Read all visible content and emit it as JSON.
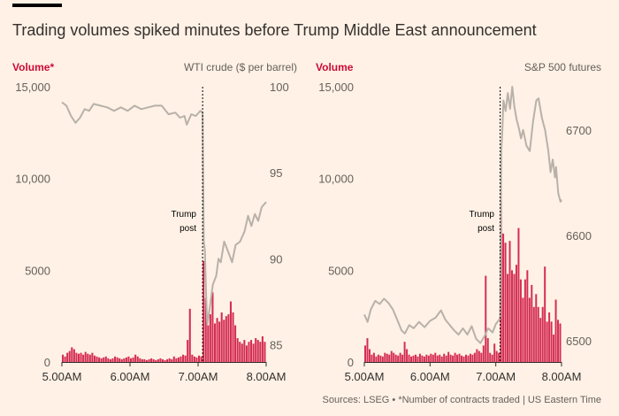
{
  "title": "Trading volumes spiked minutes before Trump Middle East announcement",
  "footer": "Sources: LSEG • *Number of contracts traded | US Eastern Time",
  "colors": {
    "volume": "#cc0a3a",
    "price": "#b8b1aa",
    "background": "#fff1e5",
    "text": "#33302e"
  },
  "chart_data": [
    {
      "type": "bar+line",
      "left_label": "Volume*",
      "right_label": "WTI crude ($ per barrel)",
      "volume_ylim": [
        0,
        15000
      ],
      "volume_ticks": [
        "0",
        "5000",
        "10,000",
        "15,000"
      ],
      "volume_tick_values": [
        0,
        5000,
        10000,
        15000
      ],
      "price_ticks": [
        "85",
        "90",
        "95",
        "100"
      ],
      "price_tick_values": [
        85,
        90,
        95,
        100
      ],
      "price_ylim": [
        84,
        100
      ],
      "x_ticks": [
        "5.00AM",
        "6.00AM",
        "7.00AM",
        "8.00AM"
      ],
      "x_tick_values": [
        "05:00",
        "06:00",
        "07:00",
        "08:00"
      ],
      "xlim": [
        "05:00",
        "08:00"
      ],
      "annotation": {
        "line1": "Trump",
        "line2": "post",
        "time": "07:04"
      },
      "volume_times": [
        "05:00",
        "05:02",
        "05:04",
        "05:06",
        "05:08",
        "05:10",
        "05:12",
        "05:14",
        "05:16",
        "05:18",
        "05:20",
        "05:22",
        "05:24",
        "05:26",
        "05:28",
        "05:30",
        "05:32",
        "05:34",
        "05:36",
        "05:38",
        "05:40",
        "05:42",
        "05:44",
        "05:46",
        "05:48",
        "05:50",
        "05:52",
        "05:54",
        "05:56",
        "05:58",
        "06:00",
        "06:02",
        "06:04",
        "06:06",
        "06:08",
        "06:10",
        "06:12",
        "06:14",
        "06:16",
        "06:18",
        "06:20",
        "06:22",
        "06:24",
        "06:26",
        "06:28",
        "06:30",
        "06:32",
        "06:34",
        "06:36",
        "06:38",
        "06:40",
        "06:42",
        "06:44",
        "06:46",
        "06:48",
        "06:50",
        "06:52",
        "06:54",
        "06:56",
        "06:58",
        "07:00",
        "07:02",
        "07:04",
        "07:06",
        "07:08",
        "07:10",
        "07:12",
        "07:14",
        "07:16",
        "07:18",
        "07:20",
        "07:22",
        "07:24",
        "07:26",
        "07:28",
        "07:30",
        "07:32",
        "07:34",
        "07:36",
        "07:38",
        "07:40",
        "07:42",
        "07:44",
        "07:46",
        "07:48",
        "07:50",
        "07:52",
        "07:54",
        "07:56",
        "07:58"
      ],
      "volume": [
        400,
        300,
        500,
        600,
        800,
        700,
        500,
        450,
        500,
        400,
        550,
        450,
        400,
        500,
        350,
        300,
        250,
        200,
        250,
        300,
        200,
        150,
        200,
        300,
        250,
        200,
        150,
        200,
        250,
        300,
        200,
        250,
        400,
        300,
        200,
        150,
        150,
        100,
        150,
        200,
        150,
        100,
        150,
        200,
        150,
        100,
        150,
        200,
        150,
        300,
        200,
        250,
        300,
        400,
        350,
        1200,
        2900,
        400,
        300,
        250,
        350,
        300,
        5500,
        3500,
        2000,
        2600,
        3800,
        2100,
        2400,
        2200,
        2700,
        2300,
        2500,
        2600,
        3300,
        2700,
        2000,
        1300,
        1100,
        1000,
        1200,
        900,
        1100,
        1200,
        1000,
        1300,
        1200,
        1100,
        1400,
        1100
      ],
      "price": [
        [
          "05:00",
          99.1
        ],
        [
          "05:04",
          98.9
        ],
        [
          "05:08",
          98.3
        ],
        [
          "05:12",
          97.9
        ],
        [
          "05:16",
          98.2
        ],
        [
          "05:20",
          98.7
        ],
        [
          "05:24",
          98.6
        ],
        [
          "05:28",
          99.0
        ],
        [
          "05:34",
          98.9
        ],
        [
          "05:40",
          98.8
        ],
        [
          "05:46",
          98.6
        ],
        [
          "05:52",
          98.8
        ],
        [
          "05:58",
          98.6
        ],
        [
          "06:04",
          98.9
        ],
        [
          "06:10",
          98.7
        ],
        [
          "06:16",
          98.8
        ],
        [
          "06:22",
          98.9
        ],
        [
          "06:28",
          98.9
        ],
        [
          "06:34",
          98.4
        ],
        [
          "06:40",
          98.5
        ],
        [
          "06:44",
          98.2
        ],
        [
          "06:48",
          98.3
        ],
        [
          "06:50",
          97.8
        ],
        [
          "06:54",
          98.4
        ],
        [
          "06:58",
          98.3
        ],
        [
          "07:02",
          98.6
        ],
        [
          "07:04",
          98.5
        ],
        [
          "07:05",
          91.0
        ],
        [
          "07:06",
          90.5
        ],
        [
          "07:07",
          88.0
        ],
        [
          "07:08",
          86.2
        ],
        [
          "07:10",
          87.0
        ],
        [
          "07:13",
          88.5
        ],
        [
          "07:16",
          89.0
        ],
        [
          "07:18",
          90.0
        ],
        [
          "07:20",
          89.8
        ],
        [
          "07:23",
          91.0
        ],
        [
          "07:26",
          90.5
        ],
        [
          "07:30",
          89.8
        ],
        [
          "07:33",
          90.8
        ],
        [
          "07:37",
          91.0
        ],
        [
          "07:41",
          91.6
        ],
        [
          "07:44",
          92.5
        ],
        [
          "07:47",
          91.9
        ],
        [
          "07:50",
          92.6
        ],
        [
          "07:53",
          92.2
        ],
        [
          "07:56",
          93.0
        ],
        [
          "08:00",
          93.3
        ]
      ]
    },
    {
      "type": "bar+line",
      "left_label": "Volume",
      "right_label": "S&P 500 futures",
      "volume_ylim": [
        0,
        15000
      ],
      "volume_ticks": [
        "0",
        "5000",
        "10,000",
        "15,000"
      ],
      "volume_tick_values": [
        0,
        5000,
        10000,
        15000
      ],
      "price_ticks": [
        "6500",
        "6600",
        "6700"
      ],
      "price_tick_values": [
        6500,
        6600,
        6700
      ],
      "price_ylim": [
        6480,
        6741
      ],
      "x_ticks": [
        "5.00AM",
        "6.00AM",
        "7.00AM",
        "8.00AM"
      ],
      "x_tick_values": [
        "05:00",
        "06:00",
        "07:00",
        "08:00"
      ],
      "xlim": [
        "05:00",
        "08:00"
      ],
      "annotation": {
        "line1": "Trump",
        "line2": "post",
        "time": "07:04"
      },
      "volume_times": [
        "05:00",
        "05:02",
        "05:04",
        "05:06",
        "05:08",
        "05:10",
        "05:12",
        "05:14",
        "05:16",
        "05:18",
        "05:20",
        "05:22",
        "05:24",
        "05:26",
        "05:28",
        "05:30",
        "05:32",
        "05:34",
        "05:36",
        "05:38",
        "05:40",
        "05:42",
        "05:44",
        "05:46",
        "05:48",
        "05:50",
        "05:52",
        "05:54",
        "05:56",
        "05:58",
        "06:00",
        "06:02",
        "06:04",
        "06:06",
        "06:08",
        "06:10",
        "06:12",
        "06:14",
        "06:16",
        "06:18",
        "06:20",
        "06:22",
        "06:24",
        "06:26",
        "06:28",
        "06:30",
        "06:32",
        "06:34",
        "06:36",
        "06:38",
        "06:40",
        "06:42",
        "06:44",
        "06:46",
        "06:48",
        "06:50",
        "06:52",
        "06:54",
        "06:56",
        "06:58",
        "07:00",
        "07:02",
        "07:04",
        "07:06",
        "07:08",
        "07:10",
        "07:12",
        "07:14",
        "07:16",
        "07:18",
        "07:20",
        "07:22",
        "07:24",
        "07:26",
        "07:28",
        "07:30",
        "07:32",
        "07:34",
        "07:36",
        "07:38",
        "07:40",
        "07:42",
        "07:44",
        "07:46",
        "07:48",
        "07:50",
        "07:52",
        "07:54",
        "07:56",
        "07:58"
      ],
      "volume": [
        900,
        1300,
        700,
        400,
        500,
        300,
        400,
        350,
        300,
        500,
        450,
        400,
        600,
        500,
        400,
        350,
        500,
        400,
        1100,
        700,
        400,
        300,
        350,
        400,
        300,
        450,
        350,
        300,
        400,
        350,
        450,
        400,
        500,
        350,
        400,
        300,
        450,
        350,
        550,
        400,
        350,
        500,
        400,
        450,
        350,
        300,
        400,
        350,
        450,
        400,
        500,
        700,
        600,
        500,
        900,
        4700,
        1300,
        500,
        400,
        1000,
        600,
        500,
        8800,
        7000,
        6500,
        4800,
        6600,
        5000,
        4800,
        5300,
        7300,
        4500,
        3500,
        4500,
        5000,
        3500,
        4200,
        3000,
        3700,
        3000,
        2400,
        3000,
        5200,
        2200,
        2700,
        2200,
        1500,
        3400,
        2300,
        2100
      ],
      "price": [
        [
          "05:00",
          6525
        ],
        [
          "05:03",
          6518
        ],
        [
          "05:06",
          6530
        ],
        [
          "05:10",
          6538
        ],
        [
          "05:14",
          6535
        ],
        [
          "05:18",
          6540
        ],
        [
          "05:22",
          6536
        ],
        [
          "05:26",
          6530
        ],
        [
          "05:30",
          6520
        ],
        [
          "05:34",
          6510
        ],
        [
          "05:37",
          6507
        ],
        [
          "05:41",
          6515
        ],
        [
          "05:45",
          6512
        ],
        [
          "05:50",
          6518
        ],
        [
          "05:55",
          6513
        ],
        [
          "06:00",
          6519
        ],
        [
          "06:05",
          6522
        ],
        [
          "06:10",
          6529
        ],
        [
          "06:14",
          6520
        ],
        [
          "06:18",
          6515
        ],
        [
          "06:22",
          6510
        ],
        [
          "06:26",
          6506
        ],
        [
          "06:30",
          6512
        ],
        [
          "06:34",
          6506
        ],
        [
          "06:38",
          6514
        ],
        [
          "06:42",
          6502
        ],
        [
          "06:46",
          6498
        ],
        [
          "06:50",
          6505
        ],
        [
          "06:53",
          6512
        ],
        [
          "06:57",
          6508
        ],
        [
          "07:00",
          6516
        ],
        [
          "07:03",
          6520
        ],
        [
          "07:04",
          6522
        ],
        [
          "07:05",
          6680
        ],
        [
          "07:06",
          6700
        ],
        [
          "07:07",
          6728
        ],
        [
          "07:09",
          6718
        ],
        [
          "07:11",
          6735
        ],
        [
          "07:13",
          6720
        ],
        [
          "07:15",
          6741
        ],
        [
          "07:17",
          6722
        ],
        [
          "07:19",
          6710
        ],
        [
          "07:21",
          6702
        ],
        [
          "07:23",
          6692
        ],
        [
          "07:25",
          6700
        ],
        [
          "07:28",
          6685
        ],
        [
          "07:31",
          6680
        ],
        [
          "07:34",
          6708
        ],
        [
          "07:37",
          6728
        ],
        [
          "07:39",
          6730
        ],
        [
          "07:42",
          6712
        ],
        [
          "07:45",
          6700
        ],
        [
          "07:48",
          6680
        ],
        [
          "07:50",
          6660
        ],
        [
          "07:52",
          6672
        ],
        [
          "07:54",
          6655
        ],
        [
          "07:55",
          6665
        ],
        [
          "07:57",
          6640
        ],
        [
          "07:59",
          6632
        ],
        [
          "08:00",
          6634
        ]
      ]
    }
  ]
}
